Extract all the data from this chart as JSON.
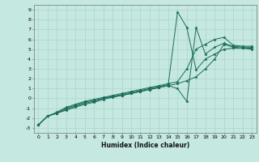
{
  "xlabel": "Humidex (Indice chaleur)",
  "xlim": [
    -0.5,
    23.5
  ],
  "ylim": [
    -3.5,
    9.5
  ],
  "xticks": [
    0,
    1,
    2,
    3,
    4,
    5,
    6,
    7,
    8,
    9,
    10,
    11,
    12,
    13,
    14,
    15,
    16,
    17,
    18,
    19,
    20,
    21,
    22,
    23
  ],
  "yticks": [
    -3,
    -2,
    -1,
    0,
    1,
    2,
    3,
    4,
    5,
    6,
    7,
    8,
    9
  ],
  "bg_color": "#c5e8e0",
  "line_color": "#1a6b5a",
  "grid_color": "#a8cfc8",
  "series": [
    {
      "x": [
        0,
        1,
        2,
        3,
        4,
        5,
        6,
        7,
        8,
        9,
        10,
        11,
        12,
        13,
        14,
        15,
        16,
        17,
        18,
        19,
        20,
        21,
        22,
        23
      ],
      "y": [
        -2.7,
        -1.8,
        -1.4,
        -0.9,
        -0.6,
        -0.3,
        -0.1,
        0.1,
        0.3,
        0.5,
        0.7,
        0.9,
        1.1,
        1.3,
        1.5,
        1.7,
        3.0,
        5.0,
        5.5,
        6.0,
        6.2,
        5.4,
        5.3,
        5.3
      ]
    },
    {
      "x": [
        0,
        1,
        2,
        3,
        4,
        5,
        6,
        7,
        8,
        9,
        10,
        11,
        12,
        13,
        14,
        15,
        16,
        17,
        18,
        19,
        20,
        21,
        22,
        23
      ],
      "y": [
        -2.7,
        -1.8,
        -1.5,
        -1.0,
        -0.7,
        -0.4,
        -0.2,
        0.0,
        0.2,
        0.3,
        0.5,
        0.7,
        0.9,
        1.1,
        1.3,
        1.0,
        -0.3,
        7.2,
        4.5,
        5.2,
        5.6,
        5.3,
        5.2,
        5.2
      ]
    },
    {
      "x": [
        0,
        1,
        2,
        3,
        4,
        5,
        6,
        7,
        8,
        9,
        10,
        11,
        12,
        13,
        14,
        15,
        16,
        17,
        18,
        19,
        20,
        21,
        22,
        23
      ],
      "y": [
        -2.7,
        -1.8,
        -1.5,
        -1.1,
        -0.8,
        -0.5,
        -0.3,
        0.0,
        0.2,
        0.4,
        0.6,
        0.8,
        1.0,
        1.2,
        1.4,
        8.8,
        7.2,
        2.9,
        4.0,
        4.5,
        5.0,
        5.1,
        5.1,
        5.1
      ]
    },
    {
      "x": [
        0,
        1,
        2,
        3,
        4,
        5,
        6,
        7,
        8,
        9,
        10,
        11,
        12,
        13,
        14,
        15,
        16,
        17,
        18,
        19,
        20,
        21,
        22,
        23
      ],
      "y": [
        -2.7,
        -1.8,
        -1.5,
        -1.2,
        -0.9,
        -0.6,
        -0.4,
        -0.1,
        0.1,
        0.3,
        0.5,
        0.7,
        0.9,
        1.1,
        1.3,
        1.5,
        1.8,
        2.2,
        3.0,
        4.0,
        5.5,
        5.2,
        5.1,
        5.0
      ]
    }
  ]
}
